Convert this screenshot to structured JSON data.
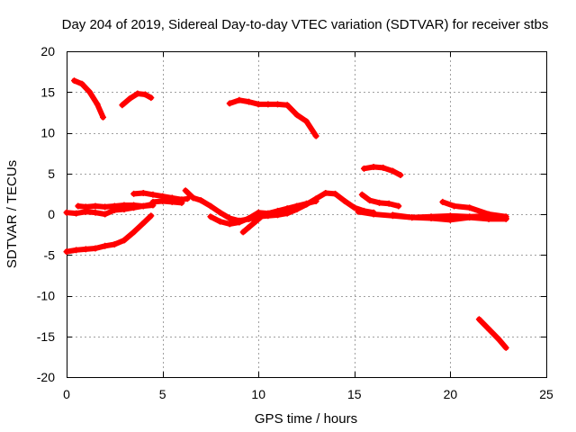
{
  "chart_data": {
    "type": "scatter",
    "title": "Day 204 of 2019, Sidereal Day-to-day VTEC variation (SDTVAR) for receiver stbs",
    "xlabel": "GPS time / hours",
    "ylabel": "SDTVAR / TECUs",
    "xlim": [
      0,
      25
    ],
    "ylim": [
      -20,
      20
    ],
    "xticks": [
      0,
      5,
      10,
      15,
      20,
      25
    ],
    "yticks": [
      -20,
      -15,
      -10,
      -5,
      0,
      5,
      10,
      15,
      20
    ],
    "grid": true,
    "marker": "+",
    "color": "#ff0000",
    "series": [
      {
        "name": "arc-1",
        "points": [
          [
            0.4,
            16.4
          ],
          [
            0.8,
            16.0
          ],
          [
            1.2,
            15.0
          ],
          [
            1.6,
            13.5
          ],
          [
            1.9,
            11.9
          ]
        ]
      },
      {
        "name": "arc-2",
        "points": [
          [
            2.9,
            13.4
          ],
          [
            3.3,
            14.2
          ],
          [
            3.7,
            14.8
          ],
          [
            4.1,
            14.7
          ],
          [
            4.4,
            14.3
          ]
        ]
      },
      {
        "name": "arc-3",
        "points": [
          [
            0.0,
            -4.6
          ],
          [
            0.5,
            -4.4
          ],
          [
            1.0,
            -4.3
          ],
          [
            1.5,
            -4.2
          ],
          [
            2.0,
            -3.9
          ],
          [
            2.5,
            -3.7
          ],
          [
            3.0,
            -3.2
          ],
          [
            3.5,
            -2.2
          ],
          [
            4.0,
            -1.1
          ],
          [
            4.4,
            -0.2
          ]
        ]
      },
      {
        "name": "arc-4",
        "points": [
          [
            0.0,
            0.2
          ],
          [
            0.5,
            0.1
          ],
          [
            1.0,
            0.3
          ],
          [
            1.5,
            0.2
          ],
          [
            2.0,
            0.0
          ],
          [
            2.5,
            0.5
          ],
          [
            3.0,
            0.6
          ],
          [
            3.5,
            0.8
          ],
          [
            4.0,
            1.0
          ],
          [
            4.4,
            1.2
          ]
        ]
      },
      {
        "name": "arc-5",
        "points": [
          [
            0.6,
            1.0
          ],
          [
            1.0,
            0.9
          ],
          [
            1.5,
            1.0
          ],
          [
            2.0,
            0.9
          ],
          [
            2.5,
            1.0
          ],
          [
            3.0,
            1.1
          ],
          [
            3.5,
            1.1
          ],
          [
            4.0,
            1.0
          ],
          [
            4.5,
            1.1
          ]
        ]
      },
      {
        "name": "arc-6",
        "points": [
          [
            3.5,
            2.5
          ],
          [
            4.0,
            2.6
          ],
          [
            4.5,
            2.4
          ],
          [
            5.0,
            2.2
          ],
          [
            5.5,
            2.0
          ],
          [
            6.0,
            1.8
          ],
          [
            6.3,
            1.9
          ]
        ]
      },
      {
        "name": "arc-7",
        "points": [
          [
            4.5,
            1.5
          ],
          [
            5.0,
            1.6
          ],
          [
            5.5,
            1.5
          ],
          [
            6.0,
            1.4
          ]
        ]
      },
      {
        "name": "arc-8",
        "points": [
          [
            6.2,
            2.9
          ],
          [
            6.6,
            2.0
          ],
          [
            7.0,
            1.7
          ],
          [
            7.5,
            1.0
          ],
          [
            8.0,
            0.2
          ],
          [
            8.5,
            -0.5
          ],
          [
            9.0,
            -0.8
          ],
          [
            9.5,
            -0.6
          ],
          [
            10.0,
            -0.3
          ],
          [
            10.5,
            -0.2
          ],
          [
            11.0,
            -0.1
          ],
          [
            11.5,
            0.1
          ],
          [
            12.0,
            0.6
          ],
          [
            12.5,
            1.2
          ],
          [
            13.0,
            1.9
          ],
          [
            13.5,
            2.6
          ],
          [
            14.0,
            2.5
          ],
          [
            14.5,
            1.6
          ],
          [
            15.0,
            0.8
          ],
          [
            15.5,
            0.4
          ],
          [
            16.0,
            0.2
          ]
        ]
      },
      {
        "name": "arc-9",
        "points": [
          [
            7.5,
            -0.3
          ],
          [
            8.0,
            -0.9
          ],
          [
            8.5,
            -1.2
          ],
          [
            9.0,
            -1.0
          ],
          [
            9.5,
            -0.5
          ],
          [
            10.0,
            0.2
          ],
          [
            10.5,
            0.1
          ],
          [
            11.0,
            0.4
          ],
          [
            11.5,
            0.7
          ],
          [
            12.0,
            1.0
          ],
          [
            12.5,
            1.3
          ],
          [
            13.0,
            1.6
          ]
        ]
      },
      {
        "name": "arc-10",
        "points": [
          [
            9.2,
            -2.2
          ],
          [
            9.5,
            -1.6
          ],
          [
            9.8,
            -1.0
          ],
          [
            10.1,
            -0.4
          ]
        ]
      },
      {
        "name": "arc-11",
        "points": [
          [
            8.5,
            13.6
          ],
          [
            9.0,
            14.0
          ],
          [
            9.5,
            13.8
          ],
          [
            10.0,
            13.5
          ],
          [
            10.5,
            13.5
          ],
          [
            11.0,
            13.5
          ],
          [
            11.5,
            13.4
          ],
          [
            12.0,
            12.2
          ],
          [
            12.5,
            11.4
          ],
          [
            13.0,
            9.6
          ]
        ]
      },
      {
        "name": "arc-12",
        "points": [
          [
            15.5,
            5.6
          ],
          [
            16.0,
            5.8
          ],
          [
            16.5,
            5.7
          ],
          [
            17.0,
            5.3
          ],
          [
            17.4,
            4.8
          ]
        ]
      },
      {
        "name": "arc-13",
        "points": [
          [
            15.4,
            2.4
          ],
          [
            15.8,
            1.7
          ],
          [
            16.3,
            1.4
          ],
          [
            16.8,
            1.3
          ],
          [
            17.3,
            1.0
          ]
        ]
      },
      {
        "name": "arc-14",
        "points": [
          [
            15.2,
            0.3
          ],
          [
            16.0,
            0.0
          ],
          [
            17.0,
            -0.2
          ],
          [
            18.0,
            -0.4
          ],
          [
            19.0,
            -0.5
          ],
          [
            20.0,
            -0.7
          ],
          [
            21.0,
            -0.4
          ],
          [
            22.0,
            -0.6
          ],
          [
            22.9,
            -0.6
          ]
        ]
      },
      {
        "name": "arc-15",
        "points": [
          [
            17.0,
            -0.1
          ],
          [
            18.0,
            -0.4
          ],
          [
            19.0,
            -0.3
          ],
          [
            20.0,
            -0.2
          ],
          [
            21.0,
            -0.3
          ],
          [
            22.0,
            -0.2
          ],
          [
            22.9,
            -0.5
          ]
        ]
      },
      {
        "name": "arc-16",
        "points": [
          [
            19.6,
            1.5
          ],
          [
            20.2,
            1.0
          ],
          [
            21.0,
            0.8
          ],
          [
            22.0,
            0.0
          ],
          [
            22.9,
            -0.3
          ]
        ]
      },
      {
        "name": "arc-17",
        "points": [
          [
            21.5,
            -12.9
          ],
          [
            22.0,
            -14.1
          ],
          [
            22.5,
            -15.3
          ],
          [
            22.9,
            -16.4
          ]
        ]
      }
    ]
  }
}
